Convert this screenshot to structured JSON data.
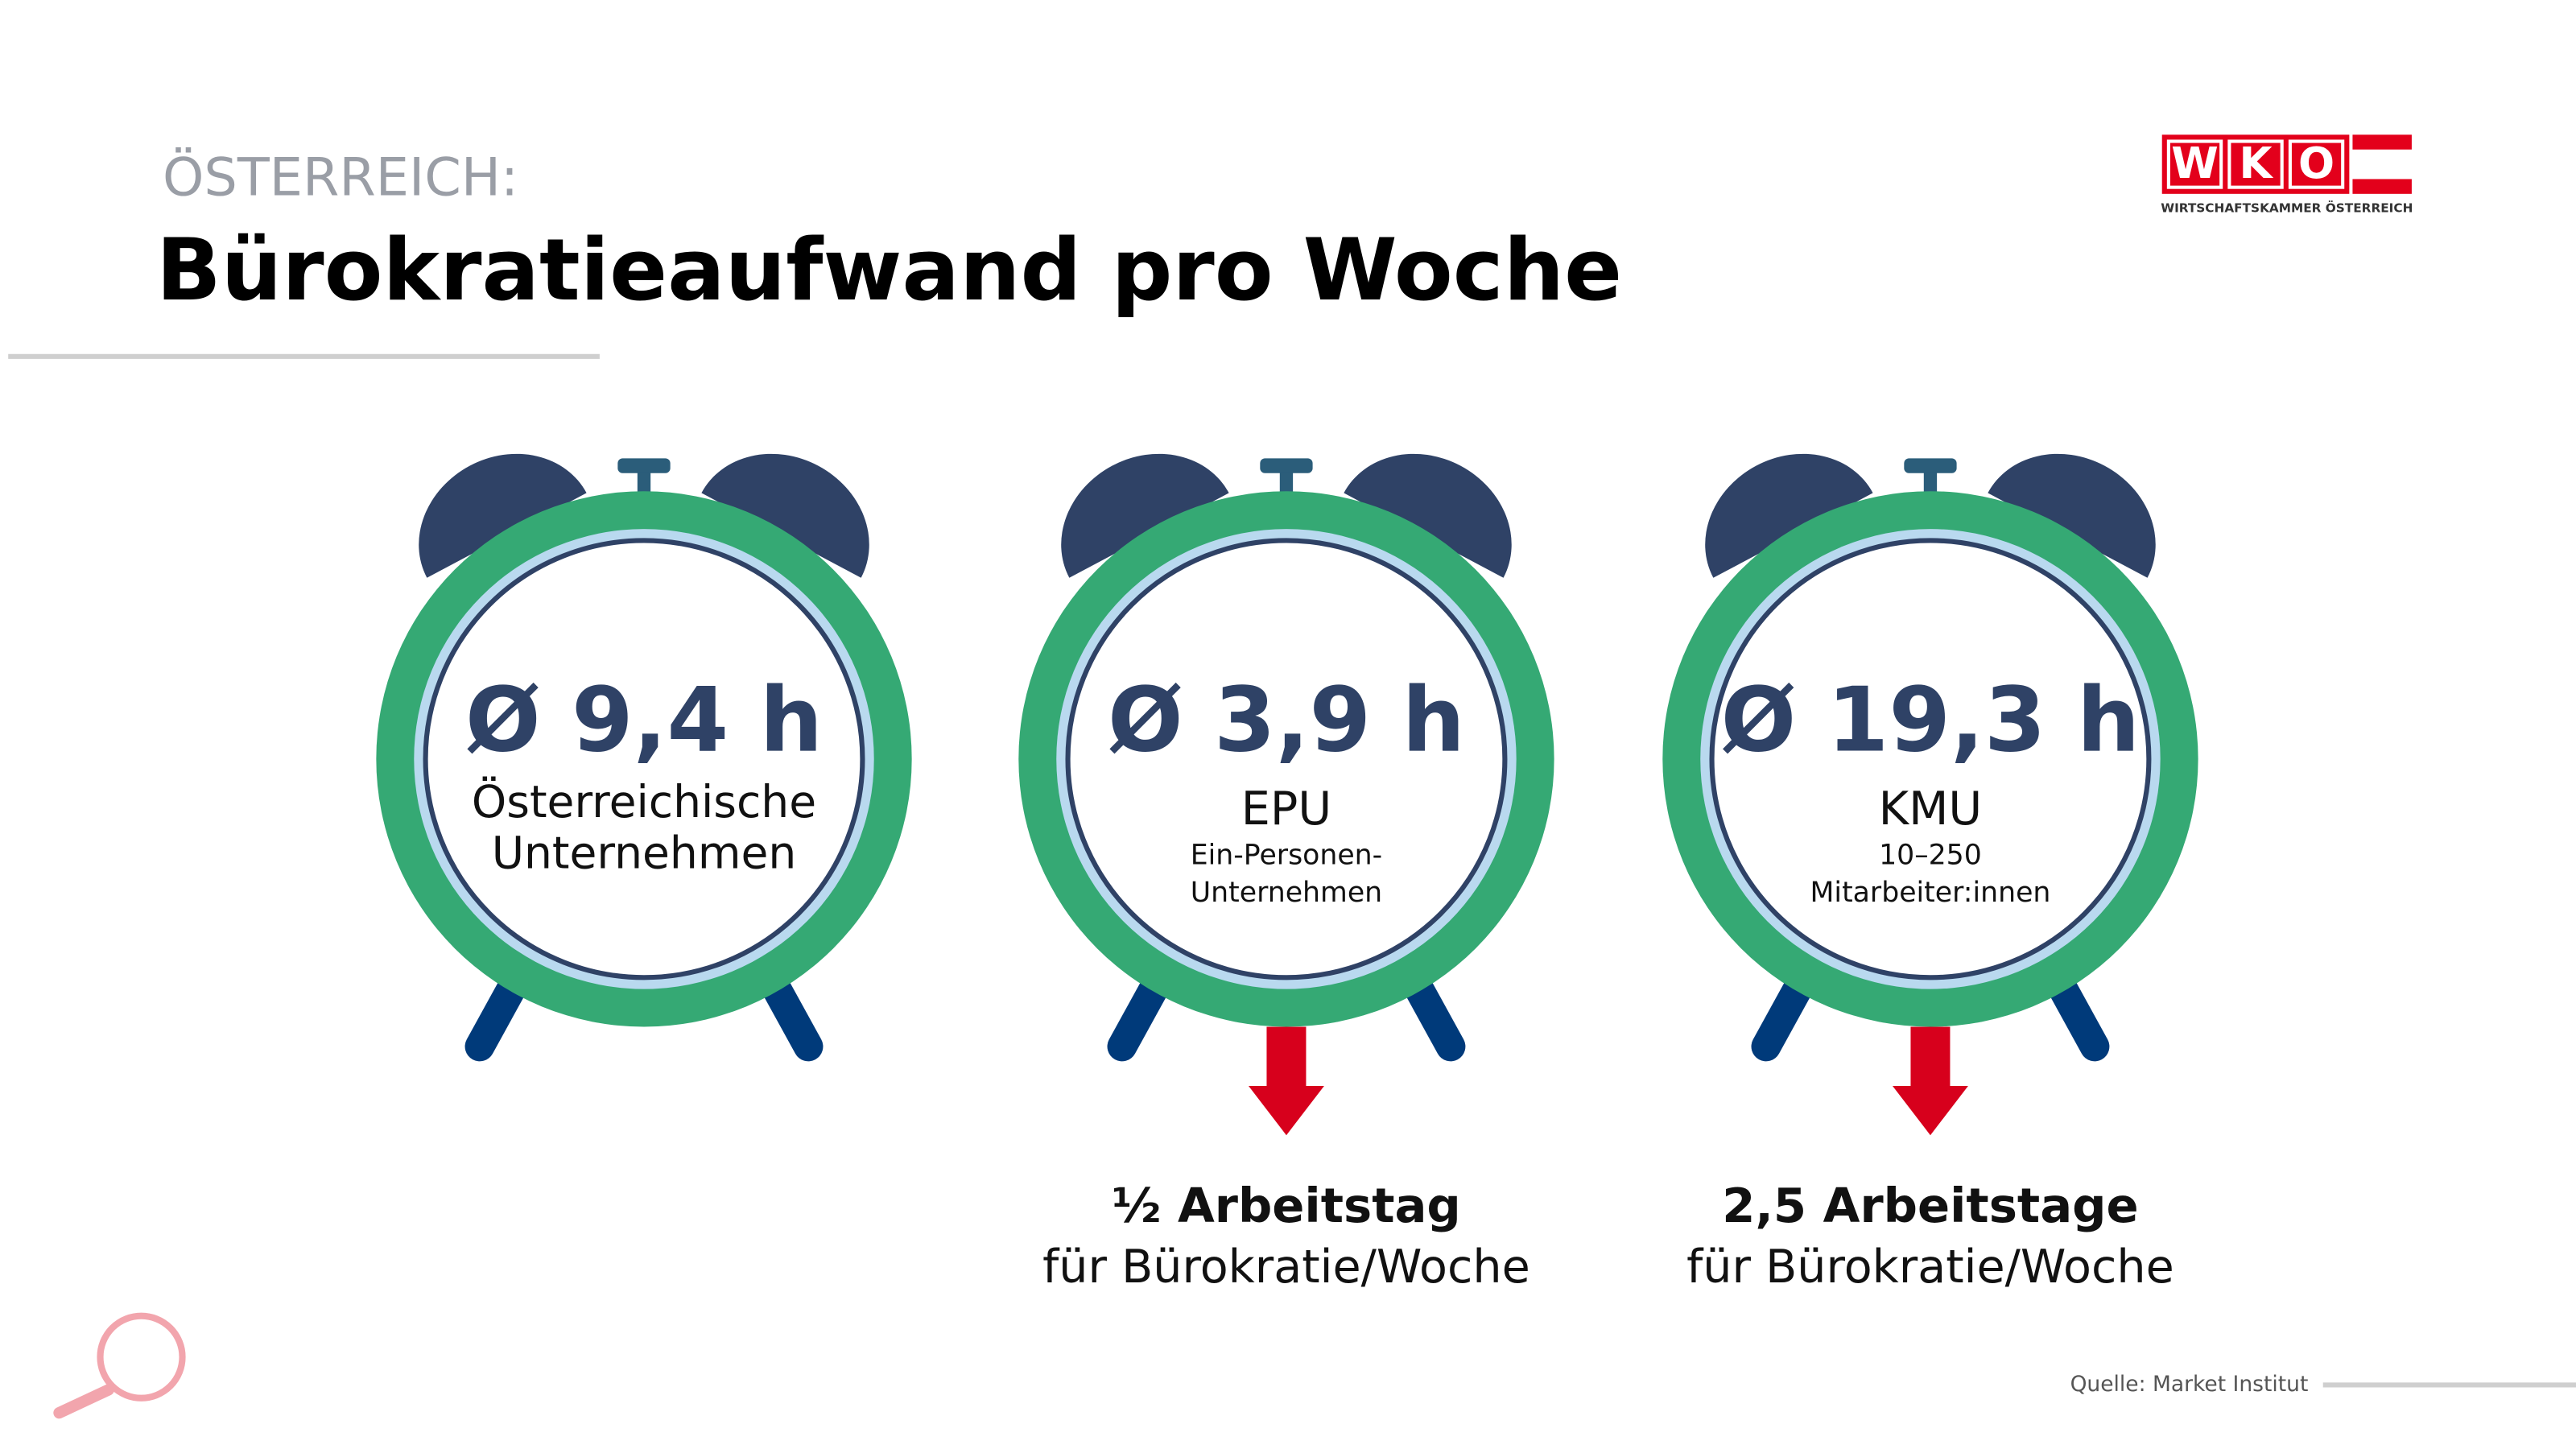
{
  "header": {
    "kicker": "ÖSTERREICH:",
    "title": "Bürokratieaufwand pro Woche"
  },
  "logo": {
    "letters": [
      "W",
      "K",
      "O"
    ],
    "subtitle": "WIRTSCHAFTSKAMMER ÖSTERREICH"
  },
  "clocks": [
    {
      "value": "Ø 9,4 h",
      "lines": [
        "Österreichische",
        "Unternehmen"
      ]
    },
    {
      "value": "Ø 3,9 h",
      "name": "EPU",
      "details": [
        "Ein-Personen-",
        "Unternehmen"
      ],
      "note": {
        "bold": "½ Arbeitstag",
        "text": "für Bürokratie/Woche"
      }
    },
    {
      "value": "Ø 19,3 h",
      "name": "KMU",
      "details": [
        "10–250",
        "Mitarbeiter:innen"
      ],
      "note": {
        "bold": "2,5 Arbeitstage",
        "text": "für Bürokratie/Woche"
      }
    }
  ],
  "source": "Quelle:  Market Institut"
}
